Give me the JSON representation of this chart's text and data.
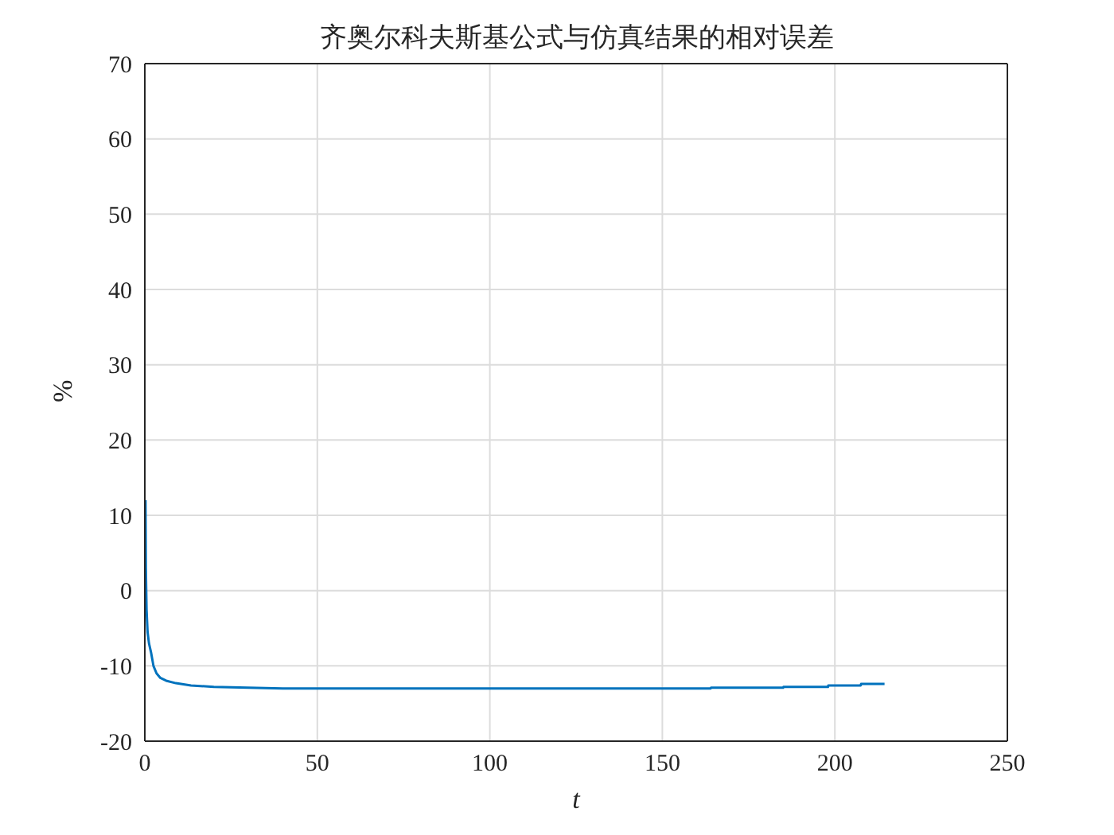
{
  "chart_data": {
    "type": "line",
    "title": "齐奥尔科夫斯基公式与仿真结果的相对误差",
    "xlabel": "t",
    "ylabel": "%",
    "series": [
      {
        "color": "#0072bd",
        "x": [
          0.2,
          0.3,
          0.5,
          0.8,
          1.2,
          1.8,
          2.5,
          3.4,
          4.5,
          6.4,
          9,
          13.4,
          20,
          40,
          80,
          120,
          164,
          164.1,
          185,
          185.1,
          198,
          198.1,
          207.5,
          207.6,
          214.4
        ],
        "values": [
          12,
          3,
          -2.5,
          -5.5,
          -7,
          -8.2,
          -10,
          -11,
          -11.6,
          -12,
          -12.3,
          -12.6,
          -12.8,
          -13,
          -13,
          -13,
          -13,
          -12.9,
          -12.9,
          -12.8,
          -12.8,
          -12.6,
          -12.6,
          -12.4,
          -12.4
        ]
      }
    ],
    "xlim": [
      0,
      250
    ],
    "xticks": [
      0,
      50,
      100,
      150,
      200,
      250
    ],
    "ylim": [
      -20,
      70
    ],
    "yticks": [
      -20,
      -10,
      0,
      10,
      20,
      30,
      40,
      50,
      60,
      70
    ],
    "grid": true,
    "legend": false,
    "marker": "none",
    "line_style": "solid"
  }
}
